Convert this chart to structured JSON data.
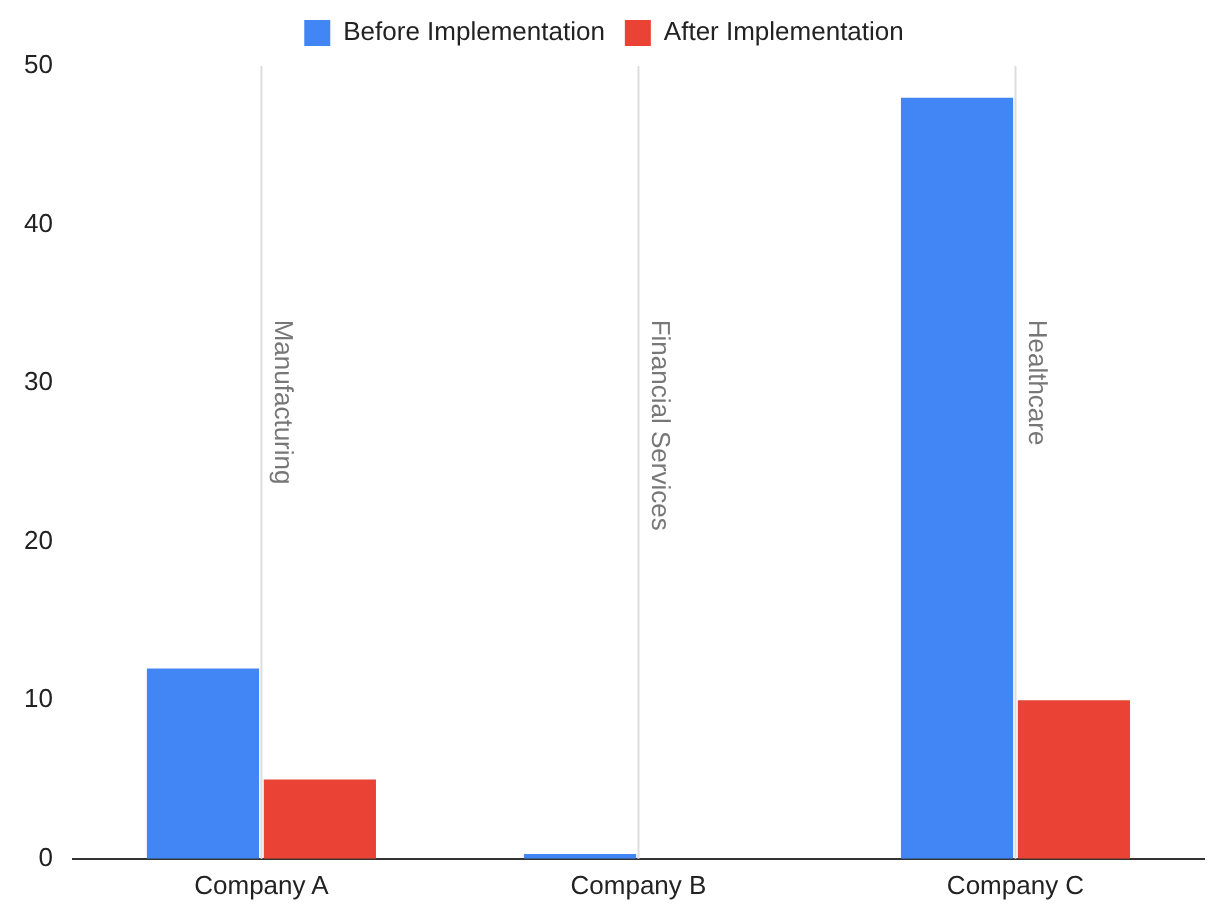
{
  "chart_data": {
    "type": "bar",
    "categories": [
      "Company A",
      "Company B",
      "Company C"
    ],
    "series": [
      {
        "name": "Before Implementation",
        "color": "#4285f4",
        "values": [
          12,
          0.3,
          48
        ]
      },
      {
        "name": "After Implementation",
        "color": "#ea4335",
        "values": [
          5,
          0,
          10
        ]
      }
    ],
    "ylim": [
      0,
      50
    ],
    "yticks": [
      0,
      10,
      20,
      30,
      40,
      50
    ],
    "grid": false,
    "legend": "top",
    "ref_lines": [
      {
        "axis": "x",
        "value": "Company A",
        "label": "Manufacturing",
        "color": "#dddddd"
      },
      {
        "axis": "x",
        "value": "Company B",
        "label": "Financial Services",
        "color": "#dddddd"
      },
      {
        "axis": "x",
        "value": "Company C",
        "label": "Healthcare",
        "color": "#dddddd"
      }
    ]
  }
}
